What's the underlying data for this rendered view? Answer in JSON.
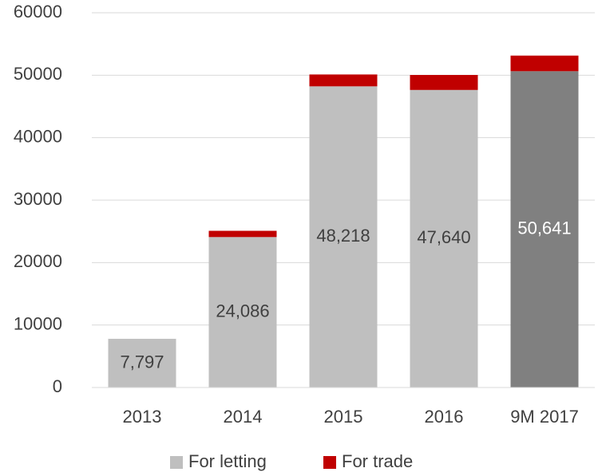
{
  "chart_data": {
    "type": "stacked_bar",
    "categories": [
      "2013",
      "2014",
      "2015",
      "2016",
      "9M 2017"
    ],
    "series": [
      {
        "name": "For letting",
        "color": "#bfbfbf",
        "colors": [
          "#bfbfbf",
          "#bfbfbf",
          "#bfbfbf",
          "#bfbfbf",
          "#808080"
        ],
        "values": [
          7797,
          24086,
          48218,
          47640,
          50641
        ],
        "value_labels": [
          "7,797",
          "24,086",
          "48,218",
          "47,640",
          "50,641"
        ]
      },
      {
        "name": "For trade",
        "color": "#c00000",
        "values": [
          0,
          1000,
          1900,
          2400,
          2500
        ]
      }
    ],
    "ylim": [
      0,
      60000
    ],
    "yticks": [
      0,
      10000,
      20000,
      30000,
      40000,
      50000,
      60000
    ],
    "grid": true,
    "legend": "bottom"
  }
}
